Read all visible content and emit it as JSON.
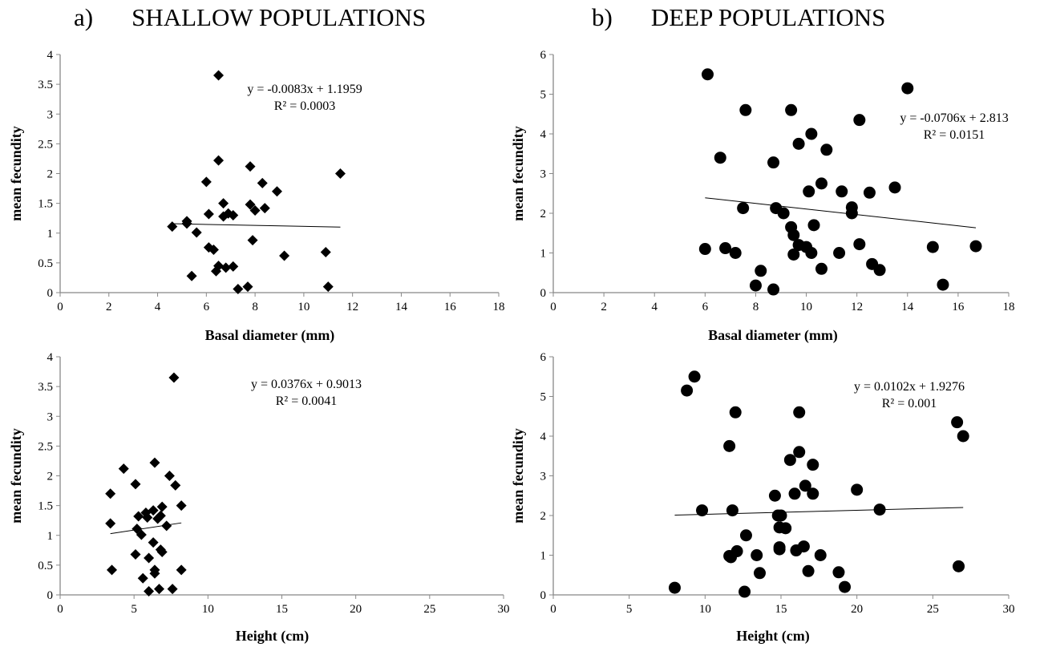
{
  "panels": [
    {
      "letter": "a)",
      "title": "SHALLOW POPULATIONS"
    },
    {
      "letter": "b)",
      "title": "DEEP POPULATIONS"
    }
  ],
  "chart_data": [
    {
      "type": "scatter",
      "panel": "a",
      "marker": "diamond",
      "xlabel": "Basal diameter (mm)",
      "ylabel": "mean fecundity",
      "xlim": [
        0,
        18
      ],
      "xticks": [
        0,
        2,
        4,
        6,
        8,
        10,
        12,
        14,
        16,
        18
      ],
      "ylim": [
        0,
        4
      ],
      "yticks": [
        0,
        0.5,
        1,
        1.5,
        2,
        2.5,
        3,
        3.5,
        4
      ],
      "equation": "y = -0.0083x + 1.1959",
      "r2": "R² = 0.0003",
      "trendline": {
        "slope": -0.0083,
        "intercept": 1.1959,
        "x_range": [
          4.6,
          11.5
        ]
      },
      "points": [
        [
          6.5,
          3.65
        ],
        [
          6.5,
          2.22
        ],
        [
          7.8,
          2.12
        ],
        [
          11.5,
          2.0
        ],
        [
          6.0,
          1.86
        ],
        [
          8.3,
          1.84
        ],
        [
          8.9,
          1.7
        ],
        [
          6.7,
          1.5
        ],
        [
          7.8,
          1.48
        ],
        [
          8.4,
          1.42
        ],
        [
          8.0,
          1.38
        ],
        [
          6.9,
          1.33
        ],
        [
          6.1,
          1.32
        ],
        [
          7.1,
          1.3
        ],
        [
          6.7,
          1.28
        ],
        [
          5.2,
          1.2
        ],
        [
          5.2,
          1.16
        ],
        [
          4.6,
          1.11
        ],
        [
          5.6,
          1.01
        ],
        [
          7.9,
          0.88
        ],
        [
          6.1,
          0.76
        ],
        [
          6.3,
          0.72
        ],
        [
          10.9,
          0.68
        ],
        [
          9.2,
          0.62
        ],
        [
          6.5,
          0.45
        ],
        [
          7.1,
          0.44
        ],
        [
          6.8,
          0.42
        ],
        [
          6.4,
          0.36
        ],
        [
          5.4,
          0.28
        ],
        [
          7.7,
          0.1
        ],
        [
          7.3,
          0.06
        ],
        [
          11.0,
          0.1
        ]
      ]
    },
    {
      "type": "scatter",
      "panel": "b",
      "marker": "circle",
      "xlabel": "Basal diameter (mm)",
      "ylabel": "mean fecundity",
      "xlim": [
        0,
        18
      ],
      "xticks": [
        0,
        2,
        4,
        6,
        8,
        10,
        12,
        14,
        16,
        18
      ],
      "ylim": [
        0,
        6
      ],
      "yticks": [
        0,
        1,
        2,
        3,
        4,
        5,
        6
      ],
      "equation": "y = -0.0706x + 2.813",
      "r2": "R² = 0.0151",
      "trendline": {
        "slope": -0.0706,
        "intercept": 2.813,
        "x_range": [
          6.0,
          16.7
        ]
      },
      "points": [
        [
          6.1,
          5.5
        ],
        [
          14.0,
          5.15
        ],
        [
          7.6,
          4.6
        ],
        [
          9.4,
          4.6
        ],
        [
          12.1,
          4.35
        ],
        [
          10.2,
          4.0
        ],
        [
          9.7,
          3.75
        ],
        [
          10.8,
          3.6
        ],
        [
          6.6,
          3.4
        ],
        [
          8.7,
          3.28
        ],
        [
          10.6,
          2.75
        ],
        [
          13.5,
          2.65
        ],
        [
          11.4,
          2.55
        ],
        [
          10.1,
          2.55
        ],
        [
          12.5,
          2.52
        ],
        [
          11.8,
          2.15
        ],
        [
          7.5,
          2.13
        ],
        [
          8.8,
          2.13
        ],
        [
          9.1,
          2.0
        ],
        [
          11.8,
          2.0
        ],
        [
          10.3,
          1.7
        ],
        [
          9.4,
          1.65
        ],
        [
          9.5,
          1.45
        ],
        [
          12.1,
          1.22
        ],
        [
          9.7,
          1.2
        ],
        [
          10.0,
          1.15
        ],
        [
          15.0,
          1.15
        ],
        [
          16.7,
          1.17
        ],
        [
          6.0,
          1.1
        ],
        [
          6.8,
          1.12
        ],
        [
          7.2,
          1.0
        ],
        [
          9.5,
          0.96
        ],
        [
          10.2,
          1.0
        ],
        [
          11.3,
          1.0
        ],
        [
          12.6,
          0.72
        ],
        [
          10.6,
          0.6
        ],
        [
          12.9,
          0.57
        ],
        [
          8.2,
          0.55
        ],
        [
          8.0,
          0.18
        ],
        [
          8.7,
          0.08
        ],
        [
          15.4,
          0.2
        ]
      ]
    },
    {
      "type": "scatter",
      "panel": "a",
      "marker": "diamond",
      "xlabel": "Height  (cm)",
      "ylabel": "mean fecundity",
      "xlim": [
        0,
        30
      ],
      "xticks": [
        0,
        5,
        10,
        15,
        20,
        25,
        30
      ],
      "ylim": [
        0,
        4
      ],
      "yticks": [
        0,
        0.5,
        1,
        1.5,
        2,
        2.5,
        3,
        3.5,
        4
      ],
      "equation": "y = 0.0376x + 0.9013",
      "r2": "R² = 0.0041",
      "trendline": {
        "slope": 0.0376,
        "intercept": 0.9013,
        "x_range": [
          3.4,
          8.2
        ]
      },
      "points": [
        [
          7.7,
          3.65
        ],
        [
          6.4,
          2.22
        ],
        [
          4.3,
          2.12
        ],
        [
          7.4,
          2.0
        ],
        [
          5.1,
          1.86
        ],
        [
          7.8,
          1.84
        ],
        [
          3.4,
          1.7
        ],
        [
          8.2,
          1.5
        ],
        [
          6.9,
          1.48
        ],
        [
          6.3,
          1.42
        ],
        [
          5.8,
          1.38
        ],
        [
          6.8,
          1.33
        ],
        [
          5.3,
          1.32
        ],
        [
          5.9,
          1.3
        ],
        [
          6.6,
          1.28
        ],
        [
          3.4,
          1.2
        ],
        [
          7.2,
          1.16
        ],
        [
          5.2,
          1.11
        ],
        [
          5.5,
          1.01
        ],
        [
          6.3,
          0.88
        ],
        [
          6.8,
          0.76
        ],
        [
          6.9,
          0.72
        ],
        [
          5.1,
          0.68
        ],
        [
          6.0,
          0.62
        ],
        [
          3.5,
          0.42
        ],
        [
          8.2,
          0.42
        ],
        [
          6.4,
          0.42
        ],
        [
          6.4,
          0.36
        ],
        [
          5.6,
          0.28
        ],
        [
          6.7,
          0.1
        ],
        [
          6.0,
          0.06
        ],
        [
          7.6,
          0.1
        ]
      ]
    },
    {
      "type": "scatter",
      "panel": "b",
      "marker": "circle",
      "xlabel": "Height (cm)",
      "ylabel": "mean fecundity",
      "xlim": [
        0,
        30
      ],
      "xticks": [
        0,
        5,
        10,
        15,
        20,
        25,
        30
      ],
      "ylim": [
        0,
        6
      ],
      "yticks": [
        0,
        1,
        2,
        3,
        4,
        5,
        6
      ],
      "equation": "y = 0.0102x + 1.9276",
      "r2": "R² = 0.001",
      "trendline": {
        "slope": 0.0102,
        "intercept": 1.9276,
        "x_range": [
          8.0,
          27.0
        ]
      },
      "points": [
        [
          9.3,
          5.5
        ],
        [
          8.8,
          5.15
        ],
        [
          12.0,
          4.6
        ],
        [
          16.2,
          4.6
        ],
        [
          26.6,
          4.35
        ],
        [
          27.0,
          4.0
        ],
        [
          11.6,
          3.75
        ],
        [
          16.2,
          3.6
        ],
        [
          15.6,
          3.4
        ],
        [
          17.1,
          3.28
        ],
        [
          16.6,
          2.75
        ],
        [
          20.0,
          2.65
        ],
        [
          15.9,
          2.55
        ],
        [
          17.1,
          2.55
        ],
        [
          14.6,
          2.5
        ],
        [
          21.5,
          2.15
        ],
        [
          9.8,
          2.13
        ],
        [
          11.8,
          2.13
        ],
        [
          14.8,
          2.0
        ],
        [
          15.0,
          2.0
        ],
        [
          14.9,
          1.7
        ],
        [
          15.3,
          1.68
        ],
        [
          12.7,
          1.5
        ],
        [
          16.5,
          1.22
        ],
        [
          14.9,
          1.2
        ],
        [
          14.9,
          1.15
        ],
        [
          16.0,
          1.12
        ],
        [
          12.1,
          1.1
        ],
        [
          17.6,
          1.0
        ],
        [
          11.6,
          0.98
        ],
        [
          13.4,
          1.0
        ],
        [
          11.7,
          0.95
        ],
        [
          26.7,
          0.72
        ],
        [
          16.8,
          0.6
        ],
        [
          18.8,
          0.57
        ],
        [
          13.6,
          0.55
        ],
        [
          8.0,
          0.18
        ],
        [
          12.6,
          0.08
        ],
        [
          19.2,
          0.2
        ]
      ]
    }
  ]
}
